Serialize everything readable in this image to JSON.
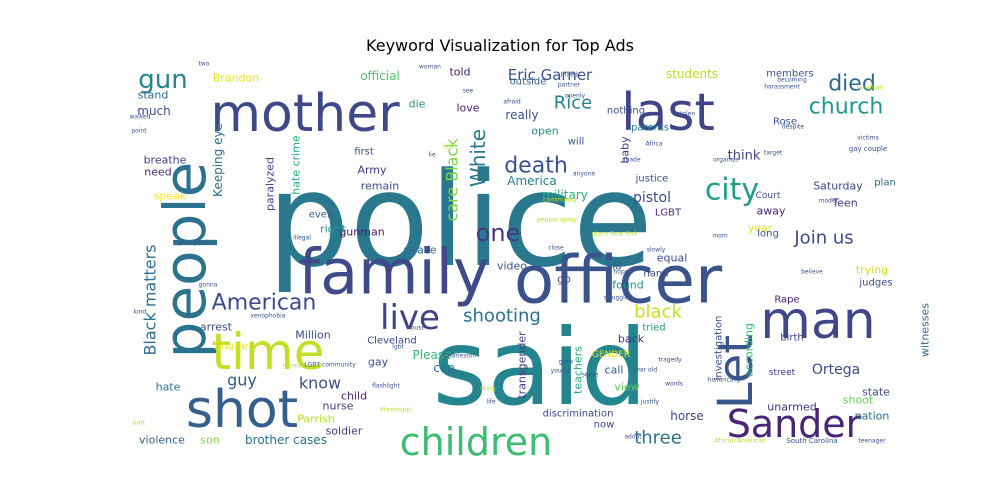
{
  "chart_data": {
    "type": "wordcloud",
    "title": "Keyword Visualization for Top Ads",
    "words": [
      {
        "text": "police",
        "size": 130,
        "color": "#2a788e"
      },
      {
        "text": "said",
        "size": 105,
        "color": "#25858e"
      },
      {
        "text": "officer",
        "size": 66,
        "color": "#3b528b"
      },
      {
        "text": "family",
        "size": 62,
        "color": "#3e4a89"
      },
      {
        "text": "people",
        "size": 58,
        "color": "#2c728e",
        "rotate": true
      },
      {
        "text": "mother",
        "size": 52,
        "color": "#3e4989"
      },
      {
        "text": "last",
        "size": 52,
        "color": "#414487"
      },
      {
        "text": "man",
        "size": 52,
        "color": "#3f4788"
      },
      {
        "text": "shot",
        "size": 52,
        "color": "#355f8d"
      },
      {
        "text": "time",
        "size": 50,
        "color": "#c2df23"
      },
      {
        "text": "Let",
        "size": 48,
        "color": "#3a548c",
        "rotate": true
      },
      {
        "text": "Sander",
        "size": 38,
        "color": "#482576"
      },
      {
        "text": "children",
        "size": 38,
        "color": "#3dbc74"
      },
      {
        "text": "live",
        "size": 34,
        "color": "#424186"
      },
      {
        "text": "city",
        "size": 30,
        "color": "#1f9e89"
      },
      {
        "text": "death",
        "size": 22,
        "color": "#3b528b"
      },
      {
        "text": "died",
        "size": 22,
        "color": "#31688e"
      },
      {
        "text": "church",
        "size": 22,
        "color": "#1e9b8a"
      },
      {
        "text": "American",
        "size": 22,
        "color": "#3f4889"
      },
      {
        "text": "one",
        "size": 24,
        "color": "#443983"
      },
      {
        "text": "gun",
        "size": 26,
        "color": "#25848e"
      },
      {
        "text": "White",
        "size": 20,
        "color": "#2a788e",
        "rotate": true
      },
      {
        "text": "care Black",
        "size": 16,
        "color": "#84d44b",
        "rotate": true
      },
      {
        "text": "Black matters",
        "size": 16,
        "color": "#2d718e",
        "rotate": true
      },
      {
        "text": "Join us",
        "size": 18,
        "color": "#3e4989"
      },
      {
        "text": "shooting",
        "size": 18,
        "color": "#2c728e"
      },
      {
        "text": "black",
        "size": 18,
        "color": "#c8e020"
      },
      {
        "text": "Eric Garner",
        "size": 15,
        "color": "#3b528b"
      },
      {
        "text": "Rice",
        "size": 18,
        "color": "#26828e"
      },
      {
        "text": "three",
        "size": 18,
        "color": "#2d708e"
      },
      {
        "text": "guy",
        "size": 16,
        "color": "#38588c"
      },
      {
        "text": "know",
        "size": 16,
        "color": "#3b518b"
      },
      {
        "text": "Ortega",
        "size": 14,
        "color": "#3e4c8a"
      },
      {
        "text": "students",
        "size": 12,
        "color": "#b8de29"
      },
      {
        "text": "official",
        "size": 12,
        "color": "#52c569"
      },
      {
        "text": "Brandon",
        "size": 11,
        "color": "#e5e419"
      },
      {
        "text": "Keeping eye",
        "size": 12,
        "color": "#2f6c8e",
        "rotate": true
      },
      {
        "text": "hate crime",
        "size": 11,
        "color": "#25ab82",
        "rotate": true
      },
      {
        "text": "paralyzed",
        "size": 11,
        "color": "#404588",
        "rotate": true
      },
      {
        "text": "military",
        "size": 12,
        "color": "#29af7f"
      },
      {
        "text": "America",
        "size": 12,
        "color": "#277f8e"
      },
      {
        "text": "pistol",
        "size": 14,
        "color": "#3d4d8a"
      },
      {
        "text": "think",
        "size": 13,
        "color": "#433e85"
      },
      {
        "text": "Saturday",
        "size": 11,
        "color": "#3e4989"
      },
      {
        "text": "Teen",
        "size": 11,
        "color": "#453882"
      },
      {
        "text": "gunman",
        "size": 11,
        "color": "#481c6e"
      },
      {
        "text": "Million",
        "size": 11,
        "color": "#3e4a89"
      },
      {
        "text": "Please",
        "size": 12,
        "color": "#32b67a"
      },
      {
        "text": "cop",
        "size": 12,
        "color": "#2c738e"
      },
      {
        "text": "transgender",
        "size": 11,
        "color": "#433e85",
        "rotate": true
      },
      {
        "text": "teachers",
        "size": 11,
        "color": "#27ad81",
        "rotate": true
      },
      {
        "text": "according",
        "size": 11,
        "color": "#31b57b",
        "rotate": true
      },
      {
        "text": "investigation",
        "size": 10,
        "color": "#3b528b",
        "rotate": true
      },
      {
        "text": "witnesses",
        "size": 11,
        "color": "#2e6e8e",
        "rotate": true
      },
      {
        "text": "trying",
        "size": 11,
        "color": "#d0e11c"
      },
      {
        "text": "judges",
        "size": 10,
        "color": "#3b528b"
      },
      {
        "text": "Rape",
        "size": 10,
        "color": "#482475"
      },
      {
        "text": "state",
        "size": 11,
        "color": "#3e4a89"
      },
      {
        "text": "nation",
        "size": 11,
        "color": "#2e6f8e"
      },
      {
        "text": "shoot",
        "size": 11,
        "color": "#6ccd5a"
      },
      {
        "text": "unarmed",
        "size": 11,
        "color": "#46327e"
      },
      {
        "text": "horse",
        "size": 12,
        "color": "#3f4788"
      },
      {
        "text": "brother cases",
        "size": 12,
        "color": "#2c728e"
      },
      {
        "text": "son",
        "size": 11,
        "color": "#84d44b"
      },
      {
        "text": "violence",
        "size": 11,
        "color": "#33638d"
      },
      {
        "text": "soldier",
        "size": 11,
        "color": "#443b84"
      },
      {
        "text": "Parrish",
        "size": 11,
        "color": "#b5de2b"
      },
      {
        "text": "nurse",
        "size": 11,
        "color": "#433e85"
      },
      {
        "text": "child",
        "size": 11,
        "color": "#482878"
      },
      {
        "text": "gay",
        "size": 11,
        "color": "#3c508b"
      },
      {
        "text": "arrest",
        "size": 11,
        "color": "#3c4f8a"
      },
      {
        "text": "hate",
        "size": 11,
        "color": "#2c728e"
      },
      {
        "text": "Shane",
        "size": 11,
        "color": "#eae51a"
      },
      {
        "text": "speak",
        "size": 11,
        "color": "#fde725"
      },
      {
        "text": "need",
        "size": 11,
        "color": "#472c7a"
      },
      {
        "text": "breathe",
        "size": 11,
        "color": "#404588"
      },
      {
        "text": "much",
        "size": 12,
        "color": "#3e4c8a"
      },
      {
        "text": "stand",
        "size": 11,
        "color": "#30698e"
      },
      {
        "text": "told",
        "size": 11,
        "color": "#482071"
      },
      {
        "text": "die",
        "size": 11,
        "color": "#20928c"
      },
      {
        "text": "love",
        "size": 11,
        "color": "#481f70"
      },
      {
        "text": "really",
        "size": 12,
        "color": "#3b518b"
      },
      {
        "text": "open",
        "size": 11,
        "color": "#20928c"
      },
      {
        "text": "first",
        "size": 10,
        "color": "#3b528b"
      },
      {
        "text": "Army",
        "size": 11,
        "color": "#443983"
      },
      {
        "text": "remain",
        "size": 11,
        "color": "#3e4a89"
      },
      {
        "text": "right",
        "size": 11,
        "color": "#228c8d"
      },
      {
        "text": "even",
        "size": 10,
        "color": "#32648e"
      },
      {
        "text": "peace",
        "size": 11,
        "color": "#31688e"
      },
      {
        "text": "video",
        "size": 11,
        "color": "#3b528b"
      },
      {
        "text": "go",
        "size": 11,
        "color": "#3e4c8a"
      },
      {
        "text": "Cleveland",
        "size": 10,
        "color": "#3e4989"
      },
      {
        "text": "kid",
        "size": 10,
        "color": "#38598c"
      },
      {
        "text": "hand",
        "size": 10,
        "color": "#3e4c8a"
      },
      {
        "text": "equal",
        "size": 11,
        "color": "#3e4c8a"
      },
      {
        "text": "found",
        "size": 11,
        "color": "#20928c"
      },
      {
        "text": "back",
        "size": 11,
        "color": "#46317e"
      },
      {
        "text": "call",
        "size": 11,
        "color": "#39568c"
      },
      {
        "text": "view",
        "size": 11,
        "color": "#5ec962"
      },
      {
        "text": "discrimination",
        "size": 10,
        "color": "#3e4989"
      },
      {
        "text": "now",
        "size": 10,
        "color": "#3e4989"
      },
      {
        "text": "tried",
        "size": 10,
        "color": "#1f9a8a"
      },
      {
        "text": "year",
        "size": 11,
        "color": "#e7e419"
      },
      {
        "text": "long",
        "size": 10,
        "color": "#3b528b"
      },
      {
        "text": "away",
        "size": 11,
        "color": "#482878"
      },
      {
        "text": "Court",
        "size": 9,
        "color": "#3b528b"
      },
      {
        "text": "LGBT",
        "size": 10,
        "color": "#472d7b"
      },
      {
        "text": "justice",
        "size": 10,
        "color": "#3e4c8a"
      },
      {
        "text": "baby",
        "size": 11,
        "color": "#46327e",
        "rotate": true
      },
      {
        "text": "parents",
        "size": 10,
        "color": "#287d8e"
      },
      {
        "text": "Rose",
        "size": 10,
        "color": "#3c4f8a"
      },
      {
        "text": "plan",
        "size": 10,
        "color": "#2e6e8e"
      },
      {
        "text": "members",
        "size": 10,
        "color": "#3b528b"
      },
      {
        "text": "nothing",
        "size": 10,
        "color": "#3b528b"
      },
      {
        "text": "will",
        "size": 10,
        "color": "#39558c"
      },
      {
        "text": "outside",
        "size": 10,
        "color": "#34618d"
      },
      {
        "text": "birth",
        "size": 10,
        "color": "#3f4788"
      },
      {
        "text": "street",
        "size": 9,
        "color": "#46337f"
      },
      {
        "text": "GENDER",
        "size": 9,
        "color": "#e5e419"
      },
      {
        "text": "gay couple",
        "size": 7,
        "color": "#3b528b"
      },
      {
        "text": "victims",
        "size": 6,
        "color": "#3e4c8a"
      },
      {
        "text": "despite",
        "size": 6,
        "color": "#3b528b"
      },
      {
        "text": "harassment",
        "size": 6,
        "color": "#3b528b"
      },
      {
        "text": "African American",
        "size": 6,
        "color": "#b5de2b"
      },
      {
        "text": "South Carolina",
        "size": 7,
        "color": "#3b528b"
      },
      {
        "text": "teenager",
        "size": 6,
        "color": "#3b528b"
      },
      {
        "text": "tragedy",
        "size": 6,
        "color": "#3b528b"
      },
      {
        "text": "words",
        "size": 6,
        "color": "#3b528b"
      },
      {
        "text": "adopt",
        "size": 6,
        "color": "#3b528b"
      },
      {
        "text": "serve",
        "size": 6,
        "color": "#3b528b"
      },
      {
        "text": "young",
        "size": 6,
        "color": "#3b528b"
      },
      {
        "text": "lgbt",
        "size": 6,
        "color": "#3b528b"
      },
      {
        "text": "LGBT community",
        "size": 6,
        "color": "#3b528b"
      },
      {
        "text": "normal",
        "size": 6,
        "color": "#b5de2b"
      },
      {
        "text": "flashlight",
        "size": 6,
        "color": "#3b528b"
      },
      {
        "text": "Mississippi",
        "size": 6,
        "color": "#b5de2b"
      },
      {
        "text": "xenophobia",
        "size": 6,
        "color": "#3b528b"
      },
      {
        "text": "kind",
        "size": 6,
        "color": "#3b528b"
      },
      {
        "text": "gonna",
        "size": 6,
        "color": "#3b528b"
      },
      {
        "text": "prompted",
        "size": 6,
        "color": "#3b528b"
      },
      {
        "text": "illegal",
        "size": 6,
        "color": "#3b528b"
      },
      {
        "text": "year old",
        "size": 6,
        "color": "#3b528b"
      },
      {
        "text": "believe",
        "size": 6,
        "color": "#3b528b"
      },
      {
        "text": "slowly",
        "size": 6,
        "color": "#3b528b"
      },
      {
        "text": "hope",
        "size": 6,
        "color": "#3b528b"
      },
      {
        "text": "struggled",
        "size": 6,
        "color": "#3b528b"
      },
      {
        "text": "pepper spray",
        "size": 6,
        "color": "#b5de2b"
      },
      {
        "text": "close",
        "size": 6,
        "color": "#3b528b"
      },
      {
        "text": "place",
        "size": 6,
        "color": "#b5de2b"
      },
      {
        "text": "New York",
        "size": 6,
        "color": "#b5de2b"
      },
      {
        "text": "mom",
        "size": 6,
        "color": "#3b528b"
      },
      {
        "text": "organize",
        "size": 6,
        "color": "#3b528b"
      },
      {
        "text": "made",
        "size": 6,
        "color": "#3b528b"
      },
      {
        "text": "anyone",
        "size": 6,
        "color": "#3b528b"
      },
      {
        "text": "community",
        "size": 6,
        "color": "#b5de2b"
      },
      {
        "text": "fire",
        "size": 6,
        "color": "#b5de2b"
      },
      {
        "text": "afraid",
        "size": 6,
        "color": "#3b528b"
      },
      {
        "text": "partner",
        "size": 6,
        "color": "#3b528b"
      },
      {
        "text": "United",
        "size": 6,
        "color": "#3b528b"
      },
      {
        "text": "woman",
        "size": 6,
        "color": "#3b528b"
      },
      {
        "text": "two",
        "size": 6,
        "color": "#3b528b"
      },
      {
        "text": "see",
        "size": 6,
        "color": "#3b528b"
      },
      {
        "text": "walked",
        "size": 6,
        "color": "#3b528b"
      },
      {
        "text": "point",
        "size": 6,
        "color": "#3b528b"
      },
      {
        "text": "Jonathan",
        "size": 6,
        "color": "#b5de2b"
      },
      {
        "text": "becoming",
        "size": 6,
        "color": "#3b528b"
      },
      {
        "text": "stolen",
        "size": 6,
        "color": "#3b528b"
      },
      {
        "text": "Africa",
        "size": 6,
        "color": "#3b528b"
      },
      {
        "text": "model",
        "size": 6,
        "color": "#3b528b"
      },
      {
        "text": "target",
        "size": 6,
        "color": "#3b528b"
      },
      {
        "text": "house",
        "size": 6,
        "color": "#3b528b"
      },
      {
        "text": "lie",
        "size": 6,
        "color": "#3b528b"
      },
      {
        "text": "Charleston",
        "size": 6,
        "color": "#3b528b"
      },
      {
        "text": "justify",
        "size": 6,
        "color": "#3b528b"
      },
      {
        "text": "life",
        "size": 6,
        "color": "#3b528b"
      },
      {
        "text": "thing",
        "size": 6,
        "color": "#b5de2b"
      },
      {
        "text": "grow",
        "size": 6,
        "color": "#3b528b"
      },
      {
        "text": "historically",
        "size": 6,
        "color": "#3b528b"
      },
      {
        "text": "openly",
        "size": 6,
        "color": "#3b528b"
      },
      {
        "text": "part",
        "size": 6,
        "color": "#b5de2b"
      }
    ]
  }
}
